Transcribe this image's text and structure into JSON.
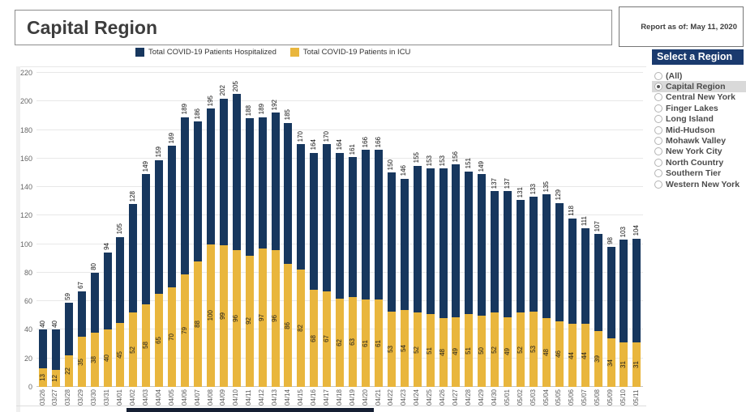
{
  "header": {
    "title": "Capital Region",
    "report_as_of": "Report as of: May 11, 2020"
  },
  "legend": [
    {
      "label": "Total COVID-19 Patients Hospitalized",
      "color": "#17375e"
    },
    {
      "label": "Total COVID-19 Patients in ICU",
      "color": "#e9b63d"
    }
  ],
  "region_panel": {
    "title": "Select a Region",
    "selected": "Capital Region",
    "options": [
      "(All)",
      "Capital Region",
      "Central New York",
      "Finger Lakes",
      "Long Island",
      "Mid-Hudson",
      "Mohawk Valley",
      "New York City",
      "North Country",
      "Southern Tier",
      "Western New York"
    ]
  },
  "chart_data": {
    "type": "bar",
    "subtype": "overlay-stacked",
    "title": "Capital Region",
    "xlabel": "",
    "ylabel": "",
    "ylim": [
      0,
      220
    ],
    "ytick_interval": 20,
    "grid": true,
    "legend_position": "top",
    "bar_value_labels": "rotated-90",
    "categories": [
      "03/26",
      "03/27",
      "03/28",
      "03/29",
      "03/30",
      "03/31",
      "04/01",
      "04/02",
      "04/03",
      "04/04",
      "04/05",
      "04/06",
      "04/07",
      "04/08",
      "04/09",
      "04/10",
      "04/11",
      "04/12",
      "04/13",
      "04/14",
      "04/15",
      "04/16",
      "04/17",
      "04/18",
      "04/19",
      "04/20",
      "04/21",
      "04/22",
      "04/23",
      "04/24",
      "04/25",
      "04/26",
      "04/27",
      "04/28",
      "04/29",
      "04/30",
      "05/01",
      "05/02",
      "05/03",
      "05/04",
      "05/05",
      "05/06",
      "05/07",
      "05/08",
      "05/09",
      "05/10",
      "05/11"
    ],
    "series": [
      {
        "name": "Total COVID-19 Patients Hospitalized",
        "color": "#17375e",
        "values": [
          40,
          40,
          59,
          67,
          80,
          94,
          105,
          128,
          149,
          159,
          169,
          189,
          186,
          195,
          202,
          205,
          188,
          189,
          192,
          185,
          170,
          164,
          170,
          164,
          161,
          166,
          166,
          150,
          146,
          155,
          153,
          153,
          156,
          151,
          149,
          137,
          137,
          131,
          133,
          135,
          129,
          118,
          111,
          107,
          98,
          103,
          104
        ]
      },
      {
        "name": "Total COVID-19 Patients in ICU",
        "color": "#e9b63d",
        "values": [
          13,
          12,
          22,
          35,
          38,
          40,
          45,
          52,
          58,
          65,
          70,
          79,
          88,
          100,
          99,
          96,
          92,
          97,
          96,
          86,
          82,
          68,
          67,
          62,
          63,
          61,
          61,
          53,
          54,
          52,
          51,
          48,
          49,
          51,
          50,
          52,
          49,
          52,
          53,
          48,
          46,
          44,
          44,
          39,
          34,
          31,
          31
        ]
      }
    ]
  }
}
